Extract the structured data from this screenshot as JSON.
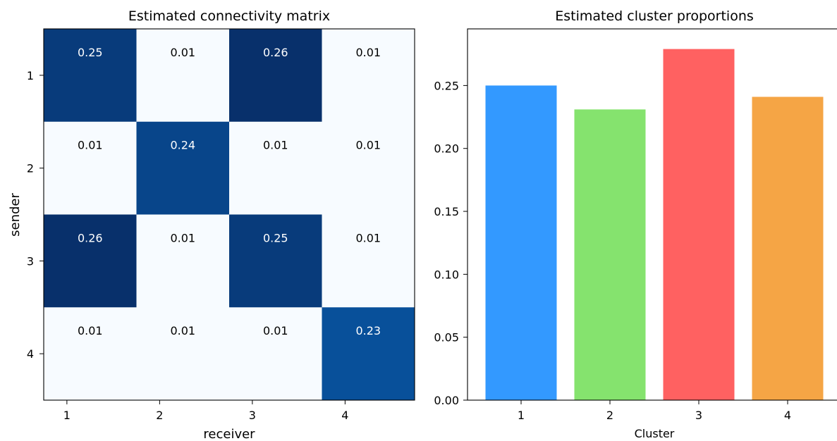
{
  "chart_data": [
    {
      "type": "heatmap",
      "title": "Estimated connectivity matrix",
      "xlabel": "receiver",
      "ylabel": "sender",
      "x_categories": [
        "1",
        "2",
        "3",
        "4"
      ],
      "y_categories": [
        "1",
        "2",
        "3",
        "4"
      ],
      "values": [
        [
          0.25,
          0.01,
          0.26,
          0.01
        ],
        [
          0.01,
          0.24,
          0.01,
          0.01
        ],
        [
          0.26,
          0.01,
          0.25,
          0.01
        ],
        [
          0.01,
          0.01,
          0.01,
          0.23
        ]
      ],
      "value_labels": [
        [
          "0.25",
          "0.01",
          "0.26",
          "0.01"
        ],
        [
          "0.01",
          "0.24",
          "0.01",
          "0.01"
        ],
        [
          "0.26",
          "0.01",
          "0.25",
          "0.01"
        ],
        [
          "0.01",
          "0.01",
          "0.01",
          "0.23"
        ]
      ],
      "colormap": "Blues",
      "grid": false
    },
    {
      "type": "bar",
      "title": "Estimated cluster proportions",
      "xlabel": "Cluster",
      "ylabel": "",
      "categories": [
        "1",
        "2",
        "3",
        "4"
      ],
      "values": [
        0.25,
        0.231,
        0.279,
        0.241
      ],
      "colors": [
        "#3399ff",
        "#85e36e",
        "#ff6161",
        "#f5a545"
      ],
      "ylim": [
        0,
        0.295
      ],
      "yticks": [
        "0.00",
        "0.05",
        "0.10",
        "0.15",
        "0.20",
        "0.25"
      ],
      "grid": false
    }
  ]
}
